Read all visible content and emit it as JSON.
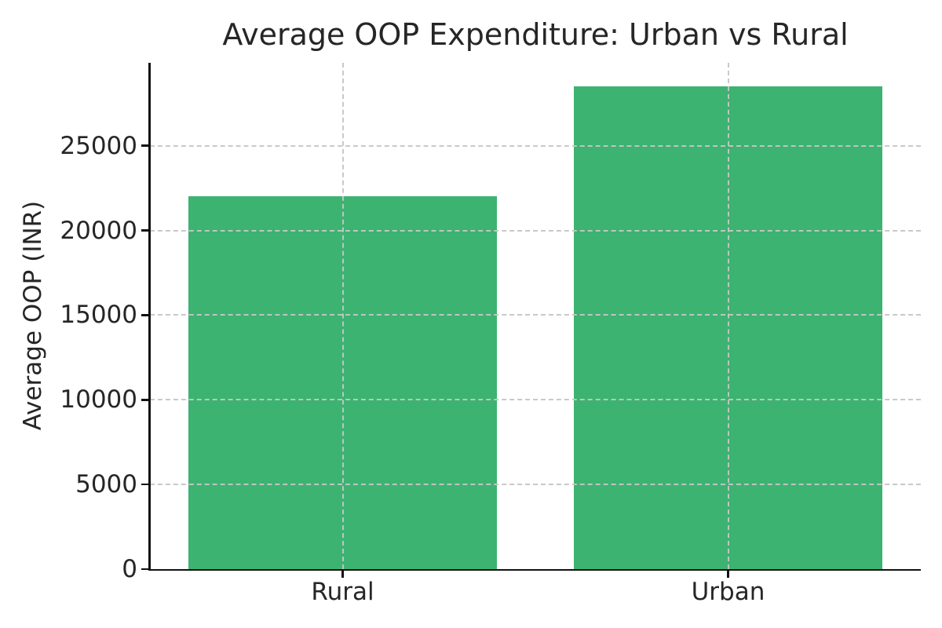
{
  "chart_data": {
    "type": "bar",
    "title": "Average OOP Expenditure: Urban vs Rural",
    "xlabel": "",
    "ylabel": "Average OOP (INR)",
    "categories": [
      "Rural",
      "Urban"
    ],
    "values": [
      22000,
      28500
    ],
    "yticks": [
      0,
      5000,
      10000,
      15000,
      20000,
      25000
    ],
    "ylim": [
      0,
      29900
    ],
    "bar_width_fraction": 0.8,
    "grid": {
      "horizontal": true,
      "vertical": true,
      "style": "dashed",
      "color": "#c6c6c6",
      "above_bars": true
    },
    "legend": "none",
    "colors": {
      "bar": "#3cb371",
      "axis": "#111111",
      "text": "#262626",
      "background": "#ffffff"
    }
  }
}
